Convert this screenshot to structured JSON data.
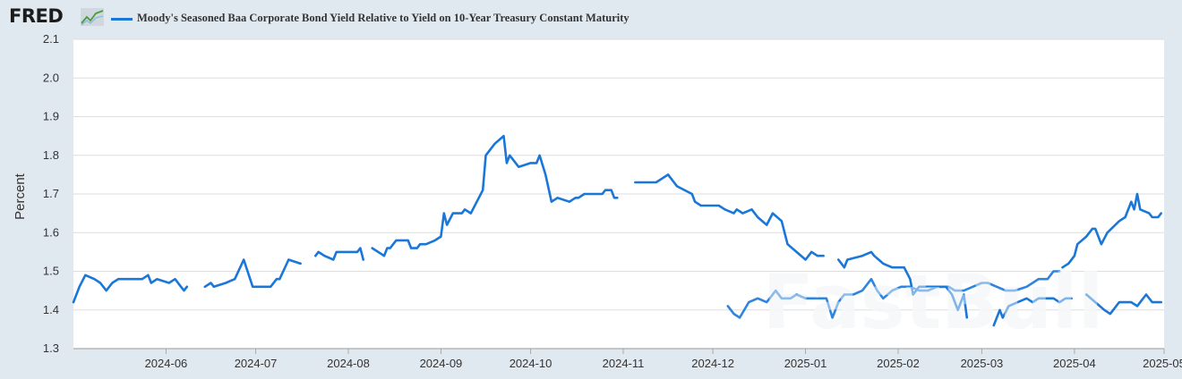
{
  "logo": {
    "text": "FRED"
  },
  "legend": {
    "label": "Moody's Seasoned Baa Corporate Bond Yield Relative to Yield on 10-Year Treasury Constant Maturity"
  },
  "watermark": {
    "text": "FastBull"
  },
  "colors": {
    "series": "#1a77d8",
    "plot_bg": "#ffffff",
    "page_bg": "#e1e9f0",
    "grid": "#dddddd",
    "faded": "#a9d2f5"
  },
  "chart_data": {
    "type": "line",
    "title": "Moody's Seasoned Baa Corporate Bond Yield Relative to Yield on 10-Year Treasury Constant Maturity",
    "xlabel": "",
    "ylabel": "Percent",
    "ylim": [
      1.3,
      2.1
    ],
    "yticks": [
      "1.3",
      "1.4",
      "1.5",
      "1.6",
      "1.7",
      "1.8",
      "1.9",
      "2.0",
      "2.1"
    ],
    "xlim": [
      "2024-05-01",
      "2025-05-01"
    ],
    "xticks": [
      "2024-06",
      "2024-07",
      "2024-08",
      "2024-09",
      "2024-10",
      "2024-11",
      "2024-12",
      "2025-01",
      "2025-02",
      "2025-03",
      "2025-04",
      "2025-05"
    ],
    "series": [
      {
        "name": "Moody's Seasoned Baa Corporate Bond Yield Relative to Yield on 10-Year Treasury Constant Maturity",
        "segments": [
          [
            [
              "2024-05-01",
              1.42
            ],
            [
              "2024-05-03",
              1.46
            ],
            [
              "2024-05-05",
              1.49
            ],
            [
              "2024-05-08",
              1.48
            ],
            [
              "2024-05-10",
              1.47
            ],
            [
              "2024-05-12",
              1.45
            ],
            [
              "2024-05-14",
              1.47
            ],
            [
              "2024-05-16",
              1.48
            ],
            [
              "2024-05-20",
              1.48
            ],
            [
              "2024-05-24",
              1.48
            ],
            [
              "2024-05-26",
              1.49
            ],
            [
              "2024-05-27",
              1.47
            ],
            [
              "2024-05-29",
              1.48
            ],
            [
              "2024-06-02",
              1.47
            ],
            [
              "2024-06-04",
              1.48
            ],
            [
              "2024-06-06",
              1.46
            ],
            [
              "2024-06-07",
              1.45
            ],
            [
              "2024-06-08",
              1.46
            ]
          ],
          [
            [
              "2024-06-14",
              1.46
            ],
            [
              "2024-06-16",
              1.47
            ],
            [
              "2024-06-17",
              1.46
            ],
            [
              "2024-06-21",
              1.47
            ],
            [
              "2024-06-24",
              1.48
            ],
            [
              "2024-06-27",
              1.53
            ],
            [
              "2024-06-30",
              1.46
            ],
            [
              "2024-07-02",
              1.46
            ],
            [
              "2024-07-06",
              1.46
            ],
            [
              "2024-07-08",
              1.48
            ],
            [
              "2024-07-09",
              1.48
            ],
            [
              "2024-07-12",
              1.53
            ],
            [
              "2024-07-16",
              1.52
            ]
          ],
          [
            [
              "2024-07-21",
              1.54
            ],
            [
              "2024-07-22",
              1.55
            ],
            [
              "2024-07-24",
              1.54
            ],
            [
              "2024-07-27",
              1.53
            ],
            [
              "2024-07-28",
              1.55
            ],
            [
              "2024-08-04",
              1.55
            ],
            [
              "2024-08-05",
              1.56
            ],
            [
              "2024-08-06",
              1.53
            ]
          ],
          [
            [
              "2024-08-09",
              1.56
            ],
            [
              "2024-08-13",
              1.54
            ],
            [
              "2024-08-14",
              1.56
            ],
            [
              "2024-08-15",
              1.56
            ],
            [
              "2024-08-17",
              1.58
            ],
            [
              "2024-08-21",
              1.58
            ],
            [
              "2024-08-22",
              1.56
            ],
            [
              "2024-08-24",
              1.56
            ],
            [
              "2024-08-25",
              1.57
            ],
            [
              "2024-08-27",
              1.57
            ],
            [
              "2024-08-30",
              1.58
            ],
            [
              "2024-09-01",
              1.59
            ],
            [
              "2024-09-02",
              1.65
            ],
            [
              "2024-09-03",
              1.62
            ],
            [
              "2024-09-05",
              1.65
            ],
            [
              "2024-09-08",
              1.65
            ],
            [
              "2024-09-09",
              1.66
            ],
            [
              "2024-09-11",
              1.65
            ],
            [
              "2024-09-15",
              1.71
            ],
            [
              "2024-09-16",
              1.8
            ],
            [
              "2024-09-19",
              1.83
            ],
            [
              "2024-09-22",
              1.85
            ],
            [
              "2024-09-23",
              1.78
            ],
            [
              "2024-09-24",
              1.8
            ],
            [
              "2024-09-27",
              1.77
            ],
            [
              "2024-10-01",
              1.78
            ],
            [
              "2024-10-03",
              1.78
            ],
            [
              "2024-10-04",
              1.8
            ],
            [
              "2024-10-06",
              1.75
            ],
            [
              "2024-10-08",
              1.68
            ],
            [
              "2024-10-10",
              1.69
            ],
            [
              "2024-10-14",
              1.68
            ],
            [
              "2024-10-16",
              1.69
            ],
            [
              "2024-10-17",
              1.69
            ],
            [
              "2024-10-19",
              1.7
            ],
            [
              "2024-10-23",
              1.7
            ],
            [
              "2024-10-25",
              1.7
            ],
            [
              "2024-10-26",
              1.71
            ],
            [
              "2024-10-28",
              1.71
            ],
            [
              "2024-10-29",
              1.69
            ],
            [
              "2024-10-30",
              1.69
            ]
          ],
          [
            [
              "2024-11-05",
              1.73
            ],
            [
              "2024-11-09",
              1.73
            ],
            [
              "2024-11-12",
              1.73
            ],
            [
              "2024-11-14",
              1.74
            ],
            [
              "2024-11-16",
              1.75
            ],
            [
              "2024-11-18",
              1.73
            ],
            [
              "2024-11-19",
              1.72
            ],
            [
              "2024-11-24",
              1.7
            ],
            [
              "2024-11-25",
              1.68
            ],
            [
              "2024-11-27",
              1.67
            ],
            [
              "2024-12-03",
              1.67
            ],
            [
              "2024-12-05",
              1.66
            ],
            [
              "2024-12-08",
              1.65
            ],
            [
              "2024-12-09",
              1.66
            ],
            [
              "2024-12-11",
              1.65
            ],
            [
              "2024-12-14",
              1.66
            ],
            [
              "2024-12-16",
              1.64
            ],
            [
              "2024-12-19",
              1.62
            ],
            [
              "2024-12-21",
              1.65
            ],
            [
              "2024-12-24",
              1.63
            ],
            [
              "2024-12-26",
              1.57
            ],
            [
              "2024-12-29",
              1.55
            ],
            [
              "2025-01-01",
              1.53
            ],
            [
              "2025-01-03",
              1.55
            ],
            [
              "2025-01-05",
              1.54
            ],
            [
              "2025-01-07",
              1.54
            ]
          ],
          [
            [
              "2025-01-12",
              1.53
            ],
            [
              "2025-01-14",
              1.51
            ],
            [
              "2025-01-15",
              1.53
            ],
            [
              "2025-01-20",
              1.54
            ],
            [
              "2025-01-23",
              1.55
            ],
            [
              "2025-01-24",
              1.54
            ],
            [
              "2025-01-27",
              1.52
            ],
            [
              "2025-01-30",
              1.51
            ],
            [
              "2025-02-03",
              1.51
            ],
            [
              "2025-02-05",
              1.48
            ],
            [
              "2025-02-06",
              1.44
            ],
            [
              "2025-02-08",
              1.46
            ],
            [
              "2025-02-13",
              1.46
            ],
            [
              "2025-02-17",
              1.46
            ],
            [
              "2025-02-19",
              1.44
            ],
            [
              "2025-02-21",
              1.4
            ],
            [
              "2025-02-23",
              1.44
            ],
            [
              "2025-02-24",
              1.38
            ]
          ],
          [
            [
              "2025-03-05",
              1.36
            ],
            [
              "2025-03-07",
              1.4
            ],
            [
              "2025-03-08",
              1.38
            ],
            [
              "2025-03-10",
              1.41
            ],
            [
              "2025-03-13",
              1.42
            ],
            [
              "2025-03-16",
              1.43
            ],
            [
              "2025-03-18",
              1.42
            ],
            [
              "2025-03-20",
              1.43
            ],
            [
              "2025-03-25",
              1.43
            ],
            [
              "2025-03-27",
              1.42
            ],
            [
              "2025-03-29",
              1.43
            ],
            [
              "2025-03-31",
              1.43
            ]
          ],
          [
            [
              "2025-04-05",
              1.44
            ],
            [
              "2025-04-08",
              1.42
            ],
            [
              "2025-04-11",
              1.4
            ],
            [
              "2025-04-13",
              1.39
            ],
            [
              "2025-04-16",
              1.42
            ],
            [
              "2025-04-20",
              1.42
            ],
            [
              "2025-04-22",
              1.41
            ],
            [
              "2025-04-25",
              1.44
            ],
            [
              "2025-04-27",
              1.42
            ],
            [
              "2025-04-30",
              1.42
            ]
          ],
          [
            [
              "2024-12-06",
              1.41
            ],
            [
              "2024-12-08",
              1.39
            ],
            [
              "2024-12-10",
              1.38
            ],
            [
              "2024-12-13",
              1.42
            ],
            [
              "2024-12-16",
              1.43
            ],
            [
              "2024-12-19",
              1.42
            ],
            [
              "2024-12-21",
              1.44
            ],
            [
              "2024-12-22",
              1.45
            ],
            [
              "2024-12-24",
              1.43
            ],
            [
              "2024-12-27",
              1.43
            ],
            [
              "2024-12-29",
              1.44
            ],
            [
              "2025-01-01",
              1.43
            ],
            [
              "2025-01-04",
              1.43
            ],
            [
              "2025-01-08",
              1.43
            ],
            [
              "2025-01-10",
              1.38
            ],
            [
              "2025-01-12",
              1.42
            ],
            [
              "2025-01-14",
              1.44
            ],
            [
              "2025-01-17",
              1.44
            ],
            [
              "2025-01-20",
              1.45
            ],
            [
              "2025-01-23",
              1.48
            ],
            [
              "2025-01-25",
              1.45
            ],
            [
              "2025-01-27",
              1.43
            ],
            [
              "2025-01-30",
              1.45
            ],
            [
              "2025-02-02",
              1.46
            ],
            [
              "2025-02-05",
              1.46
            ],
            [
              "2025-02-08",
              1.45
            ],
            [
              "2025-02-11",
              1.45
            ],
            [
              "2025-02-14",
              1.46
            ],
            [
              "2025-02-18",
              1.46
            ],
            [
              "2025-02-20",
              1.45
            ],
            [
              "2025-02-23",
              1.45
            ],
            [
              "2025-02-26",
              1.46
            ],
            [
              "2025-03-01",
              1.47
            ],
            [
              "2025-03-03",
              1.47
            ],
            [
              "2025-03-06",
              1.46
            ],
            [
              "2025-03-09",
              1.45
            ],
            [
              "2025-03-12",
              1.45
            ],
            [
              "2025-03-16",
              1.46
            ],
            [
              "2025-03-18",
              1.47
            ],
            [
              "2025-03-20",
              1.48
            ],
            [
              "2025-03-23",
              1.48
            ],
            [
              "2025-03-25",
              1.5
            ],
            [
              "2025-03-27",
              1.5
            ]
          ],
          [
            [
              "2025-03-28",
              1.51
            ],
            [
              "2025-03-30",
              1.52
            ],
            [
              "2025-04-01",
              1.54
            ],
            [
              "2025-04-02",
              1.57
            ],
            [
              "2025-04-05",
              1.59
            ],
            [
              "2025-04-07",
              1.61
            ],
            [
              "2025-04-08",
              1.61
            ],
            [
              "2025-04-10",
              1.57
            ],
            [
              "2025-04-12",
              1.6
            ],
            [
              "2025-04-16",
              1.63
            ],
            [
              "2025-04-18",
              1.64
            ],
            [
              "2025-04-20",
              1.68
            ],
            [
              "2025-04-21",
              1.66
            ],
            [
              "2025-04-22",
              1.7
            ],
            [
              "2025-04-23",
              1.66
            ],
            [
              "2025-04-26",
              1.65
            ],
            [
              "2025-04-27",
              1.64
            ],
            [
              "2025-04-29",
              1.64
            ],
            [
              "2025-04-30",
              1.65
            ]
          ]
        ]
      }
    ]
  }
}
